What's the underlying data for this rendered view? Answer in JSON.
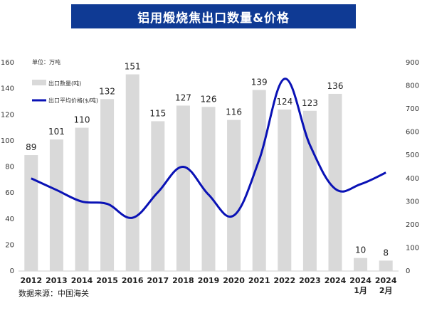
{
  "chart_data": {
    "type": "bar",
    "title": "铝用煅烧焦出口数量&价格",
    "unit_note": "单位：万吨",
    "categories": [
      "2012",
      "2013",
      "2014",
      "2015",
      "2016",
      "2017",
      "2018",
      "2019",
      "2020",
      "2021",
      "2022",
      "2023",
      "2024",
      "2024 1月",
      "2024 2月"
    ],
    "series": [
      {
        "name": "出口数量(吨)",
        "type": "bar",
        "axis": "left",
        "color": "#d9d9d9",
        "values": [
          89,
          101,
          110,
          132,
          151,
          115,
          127,
          126,
          116,
          139,
          124,
          123,
          136,
          10,
          8
        ]
      },
      {
        "name": "出口平均价格($/吨)",
        "type": "line",
        "axis": "right",
        "color": "#0a12b5",
        "values": [
          400,
          350,
          300,
          290,
          230,
          340,
          450,
          330,
          240,
          480,
          830,
          545,
          355,
          375,
          425
        ]
      }
    ],
    "y_left": {
      "lim": [
        0,
        160
      ],
      "ticks": [
        0,
        20,
        40,
        60,
        80,
        100,
        120,
        140,
        160
      ]
    },
    "y_right": {
      "lim": [
        0,
        900
      ],
      "ticks": [
        0,
        100,
        200,
        300,
        400,
        500,
        600,
        700,
        800,
        900
      ]
    },
    "grid": false,
    "legend_position": "top-left",
    "source": "数据来源：中国海关"
  }
}
